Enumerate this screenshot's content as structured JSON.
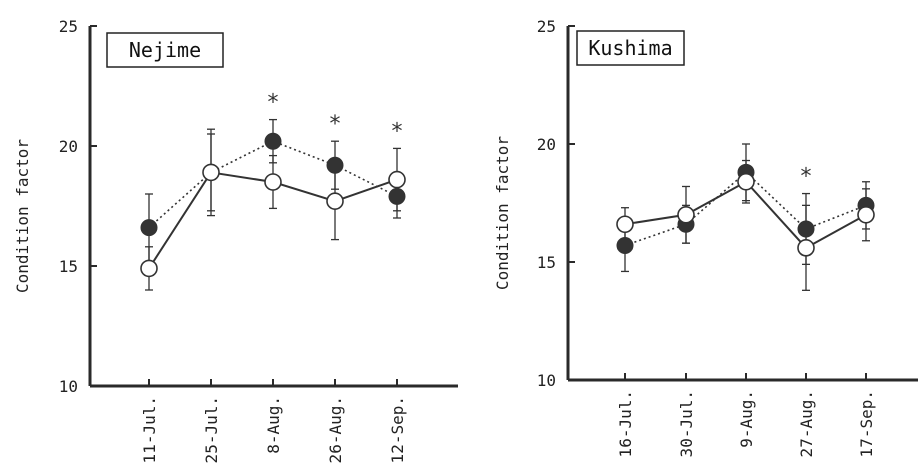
{
  "chart_data": [
    {
      "type": "line",
      "title": "Nejime",
      "ylabel": "Condition factor",
      "xlabel": "",
      "ylim": [
        10,
        25
      ],
      "yticks": [
        10,
        15,
        20,
        25
      ],
      "categories": [
        "11-Jul.",
        "25-Jul.",
        "8-Aug.",
        "26-Aug.",
        "12-Sep."
      ],
      "series": [
        {
          "style": "open-circle-solid-line",
          "values": [
            14.9,
            18.9,
            18.5,
            17.7,
            18.6
          ],
          "errors": [
            0.9,
            1.8,
            1.1,
            1.6,
            1.3
          ]
        },
        {
          "style": "filled-circle-dotted-line",
          "values": [
            16.6,
            18.9,
            20.2,
            19.2,
            17.9
          ],
          "errors": [
            1.4,
            1.6,
            0.9,
            1.0,
            0.9
          ]
        }
      ],
      "significance": [
        "",
        "",
        "*",
        "*",
        "*"
      ],
      "grid": false
    },
    {
      "type": "line",
      "title": "Kushima",
      "ylabel": "Condition factor",
      "xlabel": "",
      "ylim": [
        10,
        25
      ],
      "yticks": [
        10,
        15,
        20,
        25
      ],
      "categories": [
        "16-Jul.",
        "30-Jul.",
        "9-Aug.",
        "27-Aug.",
        "17-Sep."
      ],
      "series": [
        {
          "style": "open-circle-solid-line",
          "values": [
            16.6,
            17.0,
            18.4,
            15.6,
            17.0
          ],
          "errors": [
            0.7,
            1.2,
            0.9,
            1.8,
            1.1
          ]
        },
        {
          "style": "filled-circle-dotted-line",
          "values": [
            15.7,
            16.6,
            18.8,
            16.4,
            17.4
          ],
          "errors": [
            1.1,
            0.8,
            1.2,
            1.5,
            1.0
          ]
        }
      ],
      "significance": [
        "",
        "",
        "",
        "*",
        ""
      ],
      "grid": false
    }
  ]
}
